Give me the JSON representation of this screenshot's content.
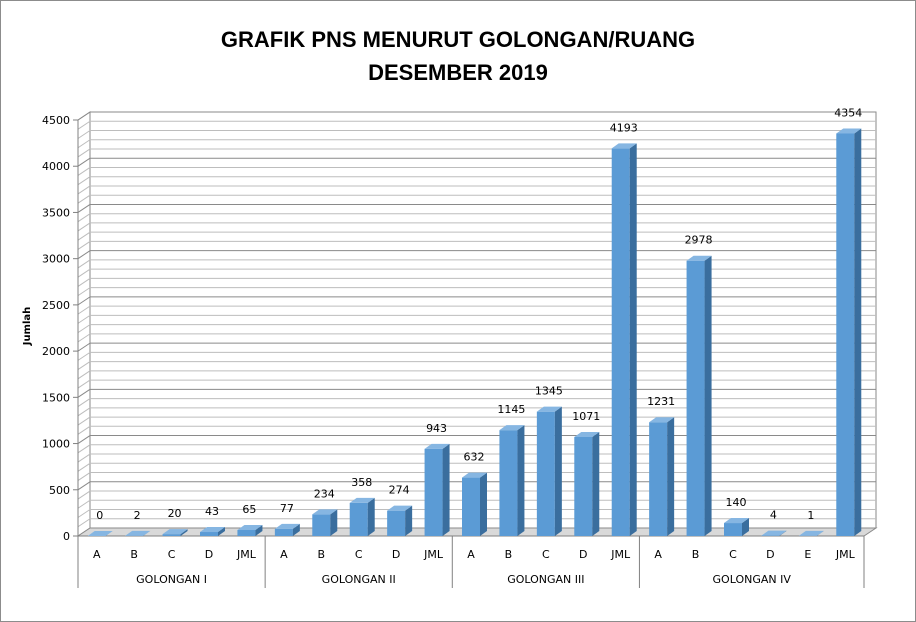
{
  "chart_data": {
    "type": "bar",
    "title_line1": "GRAFIK PNS MENURUT GOLONGAN/RUANG",
    "title_line2": "DESEMBER 2019",
    "ylabel": "Jumlah",
    "xlabel": "",
    "ylim": [
      0,
      4500
    ],
    "yticks": [
      0,
      500,
      1000,
      1500,
      2000,
      2500,
      3000,
      3500,
      4000,
      4500
    ],
    "minor_gridlines_per_major": 4,
    "groups": [
      {
        "name": "GOLONGAN I",
        "categories": [
          "A",
          "B",
          "C",
          "D",
          "JML"
        ],
        "values": [
          0,
          2,
          20,
          43,
          65
        ]
      },
      {
        "name": "GOLONGAN II",
        "categories": [
          "A",
          "B",
          "C",
          "D",
          "JML"
        ],
        "values": [
          77,
          234,
          358,
          274,
          943
        ]
      },
      {
        "name": "GOLONGAN III",
        "categories": [
          "A",
          "B",
          "C",
          "D",
          "JML"
        ],
        "values": [
          632,
          1145,
          1345,
          1071,
          4193
        ]
      },
      {
        "name": "GOLONGAN IV",
        "categories": [
          "A",
          "B",
          "C",
          "D",
          "E",
          "JML"
        ],
        "values": [
          1231,
          2978,
          140,
          4,
          1,
          4354
        ]
      }
    ],
    "colors": {
      "bar_front": "#5B9BD5",
      "bar_side": "#3A6E9E",
      "bar_top": "#86B6E2",
      "grid": "#8a8a8a",
      "wall": "#ffffff",
      "floor": "#d9d9d9"
    },
    "data_labels": true,
    "legend": "none"
  }
}
